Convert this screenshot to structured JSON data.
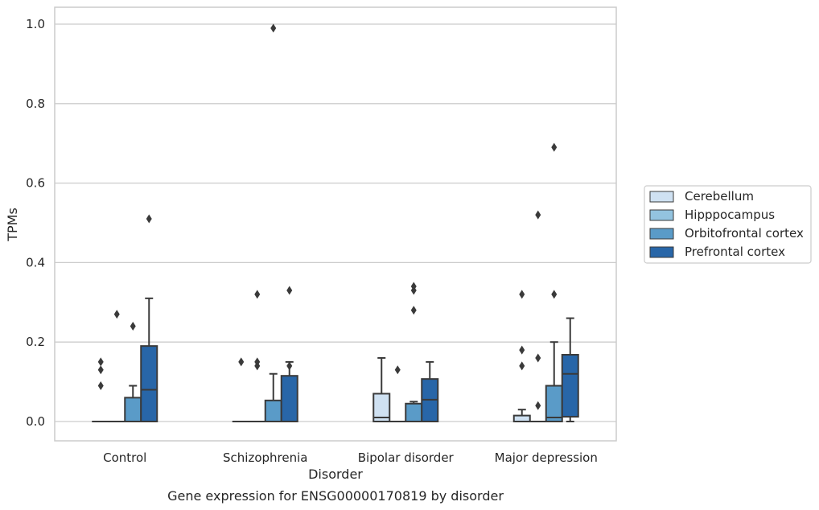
{
  "chart_data": {
    "type": "box",
    "title": "",
    "caption": "Gene expression for ENSG00000170819 by disorder",
    "xlabel": "Disorder",
    "ylabel": "TPMs",
    "ylim": [
      -0.05,
      1.04
    ],
    "yticks": [
      "0.0",
      "0.2",
      "0.4",
      "0.6",
      "0.8",
      "1.0"
    ],
    "ytick_values": [
      0,
      0.2,
      0.4,
      0.6,
      0.8,
      1.0
    ],
    "grid": "horizontal",
    "legend_position": "right",
    "categories": [
      "Control",
      "Schizophrenia",
      "Bipolar disorder",
      "Major depression"
    ],
    "series": [
      {
        "name": "Cerebellum",
        "color": "#cfe1f2",
        "boxes": [
          {
            "q1": 0,
            "median": 0,
            "q3": 0,
            "whisker_low": 0,
            "whisker_high": 0,
            "outliers": [
              0.09,
              0.13,
              0.15
            ]
          },
          {
            "q1": 0,
            "median": 0,
            "q3": 0,
            "whisker_low": 0,
            "whisker_high": 0,
            "outliers": [
              0.15
            ]
          },
          {
            "q1": 0,
            "median": 0.01,
            "q3": 0.07,
            "whisker_low": 0,
            "whisker_high": 0.16,
            "outliers": []
          },
          {
            "q1": 0,
            "median": 0,
            "q3": 0.015,
            "whisker_low": 0,
            "whisker_high": 0.03,
            "outliers": [
              0.14,
              0.18,
              0.32
            ]
          }
        ]
      },
      {
        "name": "Hipppocampus",
        "color": "#93c3df",
        "boxes": [
          {
            "q1": 0,
            "median": 0,
            "q3": 0,
            "whisker_low": 0,
            "whisker_high": 0,
            "outliers": [
              0.27
            ]
          },
          {
            "q1": 0,
            "median": 0,
            "q3": 0,
            "whisker_low": 0,
            "whisker_high": 0,
            "outliers": [
              0.14,
              0.15,
              0.32
            ]
          },
          {
            "q1": 0,
            "median": 0,
            "q3": 0,
            "whisker_low": 0,
            "whisker_high": 0,
            "outliers": [
              0.13
            ]
          },
          {
            "q1": 0,
            "median": 0,
            "q3": 0,
            "whisker_low": 0,
            "whisker_high": 0,
            "outliers": [
              0.04,
              0.16,
              0.52
            ]
          }
        ]
      },
      {
        "name": "Orbitofrontal cortex",
        "color": "#5a9bc8",
        "boxes": [
          {
            "q1": 0,
            "median": 0,
            "q3": 0.06,
            "whisker_low": 0,
            "whisker_high": 0.09,
            "outliers": [
              0.24
            ]
          },
          {
            "q1": 0,
            "median": 0,
            "q3": 0.053,
            "whisker_low": 0,
            "whisker_high": 0.12,
            "outliers": [
              0.99
            ]
          },
          {
            "q1": 0,
            "median": 0,
            "q3": 0.045,
            "whisker_low": 0,
            "whisker_high": 0.05,
            "outliers": [
              0.28,
              0.33,
              0.34
            ]
          },
          {
            "q1": 0,
            "median": 0.01,
            "q3": 0.09,
            "whisker_low": 0,
            "whisker_high": 0.2,
            "outliers": [
              0.32,
              0.69
            ]
          }
        ]
      },
      {
        "name": "Prefrontal cortex",
        "color": "#2866a8",
        "boxes": [
          {
            "q1": 0,
            "median": 0.08,
            "q3": 0.19,
            "whisker_low": 0,
            "whisker_high": 0.31,
            "outliers": [
              0.51
            ]
          },
          {
            "q1": 0,
            "median": 0,
            "q3": 0.115,
            "whisker_low": 0,
            "whisker_high": 0.15,
            "outliers": [
              0.14,
              0.33
            ]
          },
          {
            "q1": 0,
            "median": 0.055,
            "q3": 0.107,
            "whisker_low": 0,
            "whisker_high": 0.15,
            "outliers": []
          },
          {
            "q1": 0.012,
            "median": 0.12,
            "q3": 0.168,
            "whisker_low": 0,
            "whisker_high": 0.26,
            "outliers": []
          }
        ]
      }
    ]
  }
}
